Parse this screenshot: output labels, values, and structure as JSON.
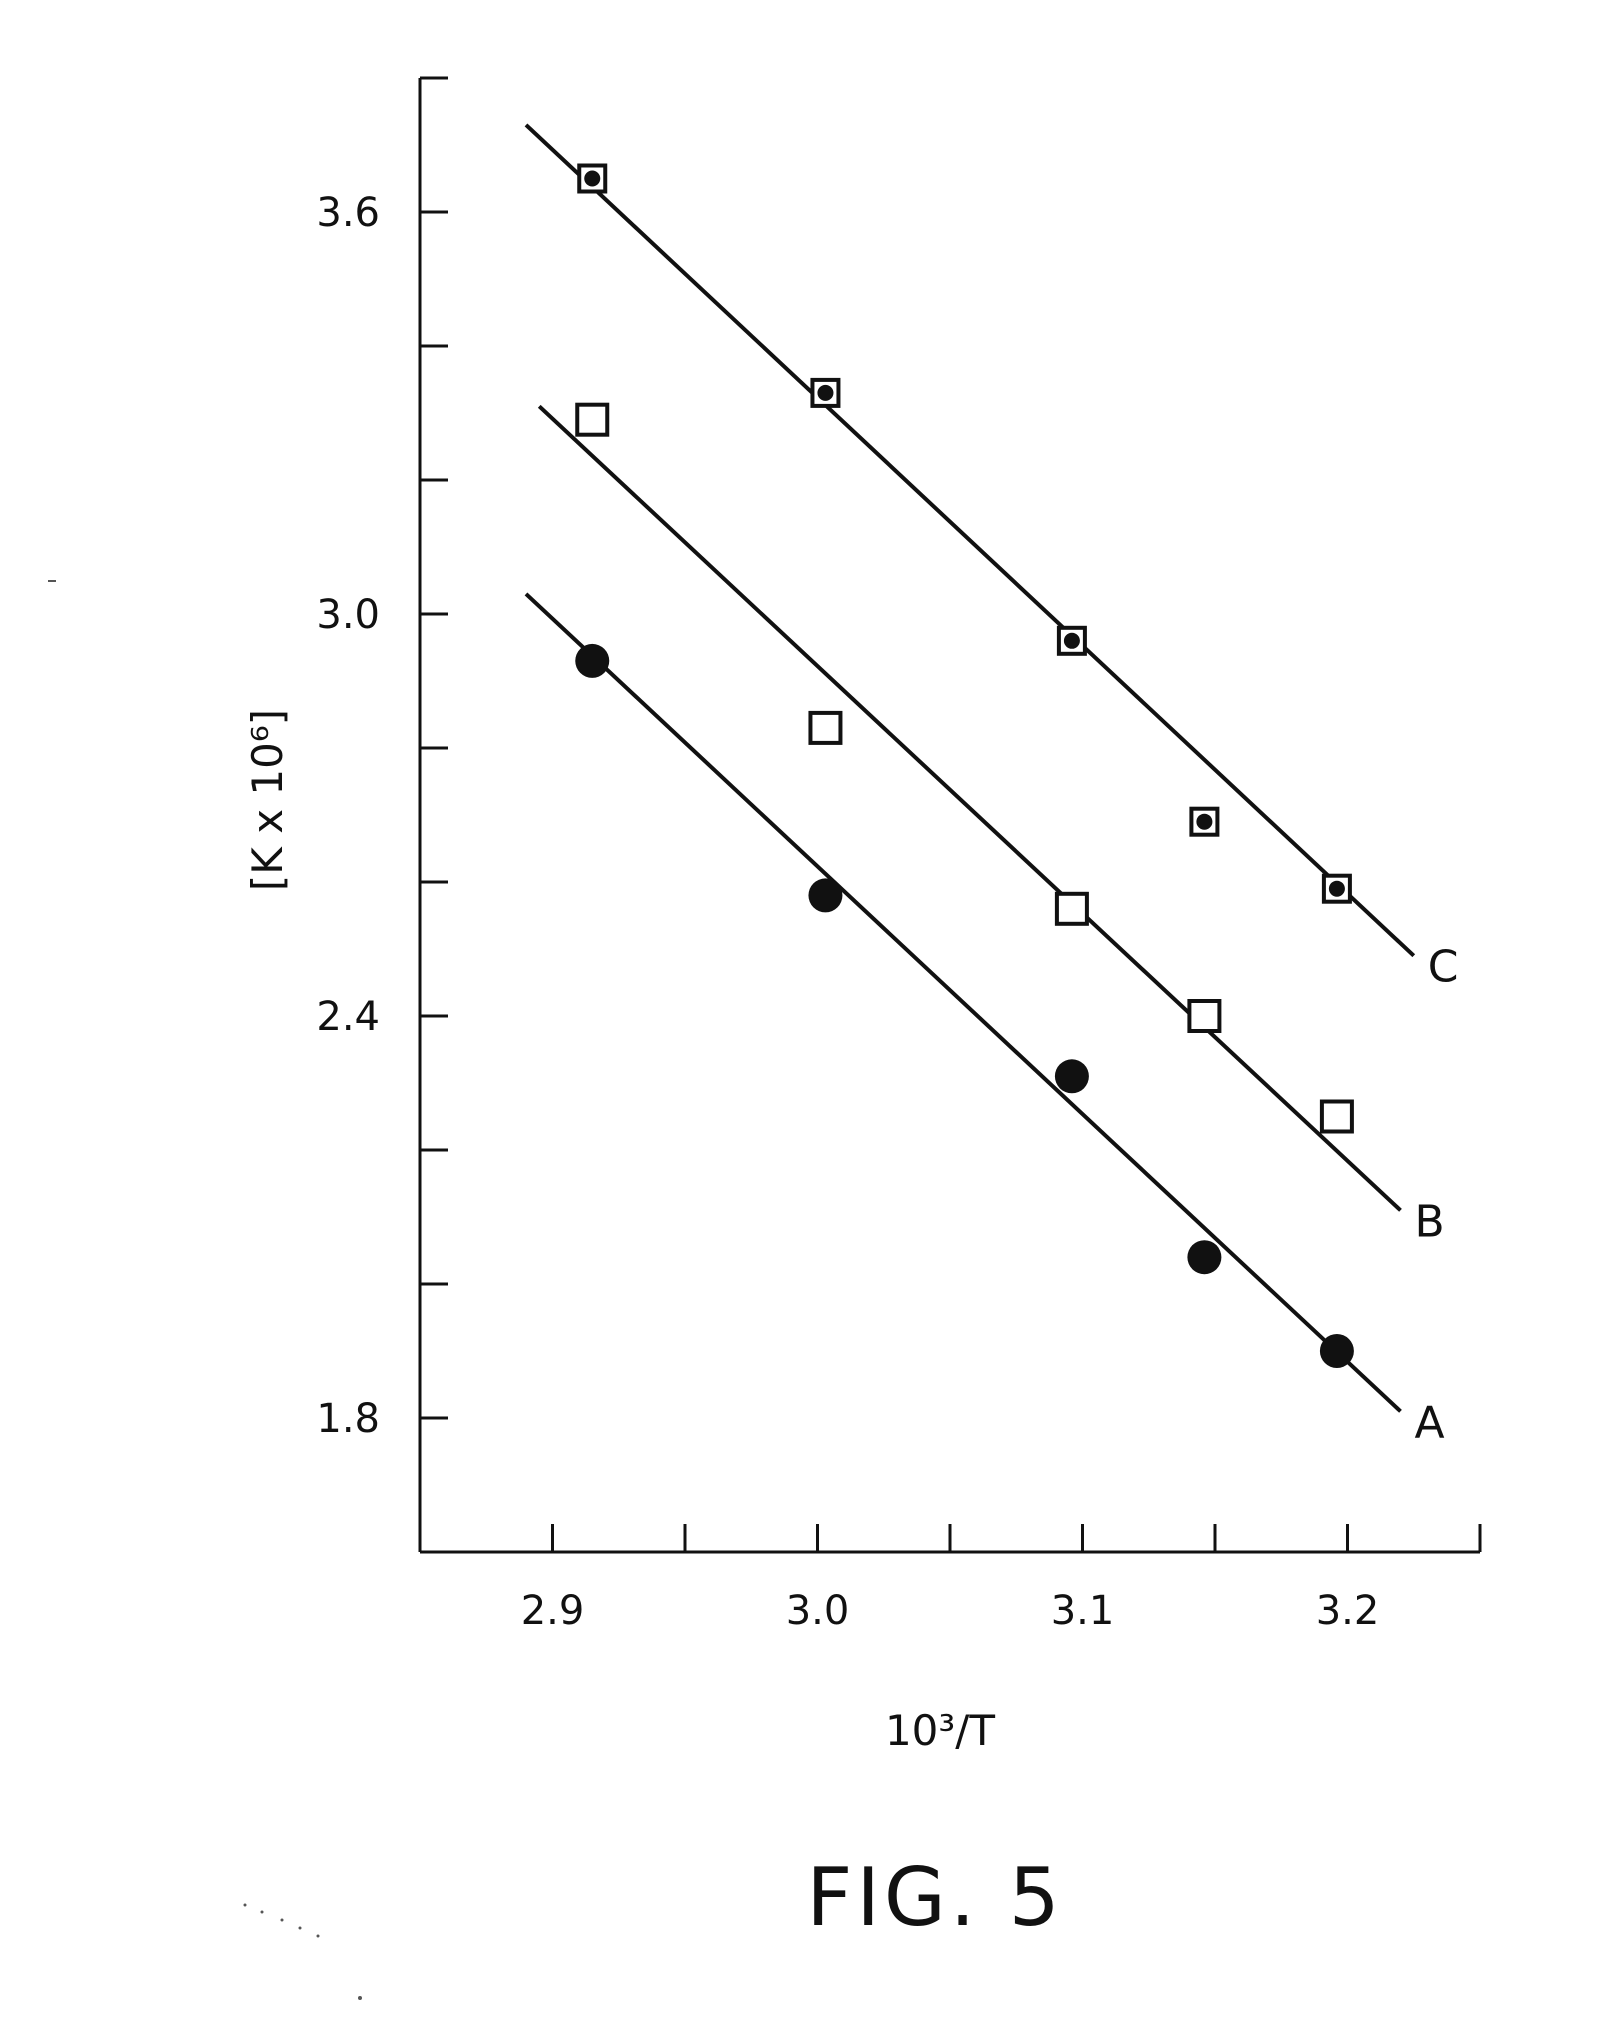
{
  "chart_data": {
    "type": "scatter",
    "xlabel": "10³/T",
    "ylabel": "[K x 10⁶]",
    "caption": "FIG. 5",
    "xlim": [
      2.85,
      3.25
    ],
    "ylim": [
      1.6,
      3.8
    ],
    "x_ticks": [
      2.9,
      2.95,
      3.0,
      3.05,
      3.1,
      3.15,
      3.2,
      3.25
    ],
    "x_tick_labels": [
      {
        "value": 2.9,
        "label": "2.9"
      },
      {
        "value": 3.0,
        "label": "3.0"
      },
      {
        "value": 3.1,
        "label": "3.1"
      },
      {
        "value": 3.2,
        "label": "3.2"
      }
    ],
    "y_ticks": [
      1.8,
      2.0,
      2.2,
      2.4,
      2.6,
      2.8,
      3.0,
      3.2,
      3.4,
      3.6,
      3.8
    ],
    "y_tick_labels": [
      {
        "value": 1.8,
        "label": "1.8"
      },
      {
        "value": 2.4,
        "label": "2.4"
      },
      {
        "value": 3.0,
        "label": "3.0"
      },
      {
        "value": 3.6,
        "label": "3.6"
      }
    ],
    "grid": false,
    "series": [
      {
        "name": "A",
        "marker": "filled-circle",
        "points": [
          [
            2.915,
            2.93
          ],
          [
            3.003,
            2.58
          ],
          [
            3.096,
            2.31
          ],
          [
            3.146,
            2.04
          ],
          [
            3.196,
            1.9
          ]
        ],
        "fit_line": [
          [
            2.89,
            3.03
          ],
          [
            3.22,
            1.81
          ]
        ]
      },
      {
        "name": "B",
        "marker": "open-square",
        "points": [
          [
            2.915,
            3.29
          ],
          [
            3.003,
            2.83
          ],
          [
            3.096,
            2.56
          ],
          [
            3.146,
            2.4
          ],
          [
            3.196,
            2.25
          ]
        ],
        "fit_line": [
          [
            2.895,
            3.31
          ],
          [
            3.22,
            2.11
          ]
        ]
      },
      {
        "name": "C",
        "marker": "dotted-square",
        "points": [
          [
            2.915,
            3.65
          ],
          [
            3.003,
            3.33
          ],
          [
            3.096,
            2.96
          ],
          [
            3.146,
            2.69
          ],
          [
            3.196,
            2.59
          ]
        ],
        "fit_line": [
          [
            2.89,
            3.73
          ],
          [
            3.225,
            2.49
          ]
        ]
      }
    ]
  }
}
